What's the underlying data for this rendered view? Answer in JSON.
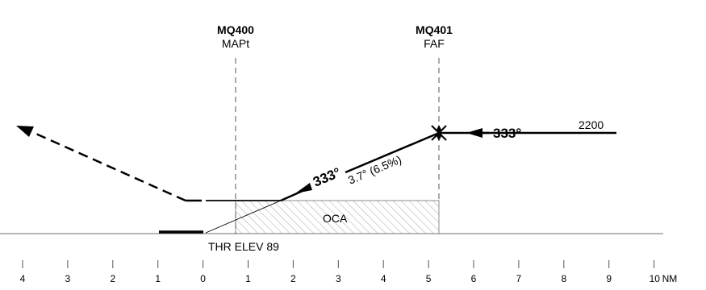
{
  "fixes": [
    {
      "ident": "MQ400",
      "role": "MAPt",
      "distance_nm": 0.7
    },
    {
      "ident": "MQ401",
      "role": "FAF",
      "distance_nm": 5.2
    }
  ],
  "initial_segment": {
    "course": "333°",
    "altitude": "2200"
  },
  "final_segment": {
    "course": "333°",
    "gradient": "3.7° (6.5%)"
  },
  "oca_label": "OCA",
  "threshold_label": "THR ELEV 89",
  "distance_scale": {
    "labels": [
      "4",
      "3",
      "2",
      "1",
      "0",
      "1",
      "2",
      "3",
      "4",
      "5",
      "6",
      "7",
      "8",
      "9",
      "10"
    ],
    "unit": "NM"
  }
}
